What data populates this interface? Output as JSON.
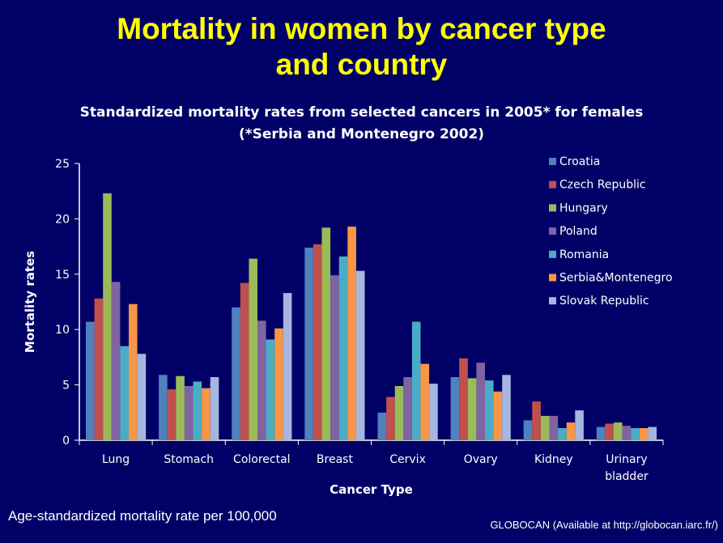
{
  "slide": {
    "title_line1": "Mortality in women by cancer type",
    "title_line2": "and country",
    "footnote": "Age-standardized mortality rate per 100,000",
    "source": "GLOBOCAN (Available at http://globocan.iarc.fr/)"
  },
  "chart_data": {
    "type": "bar",
    "title": "Standardized mortality rates from selected cancers in 2005* for females",
    "subtitle": "(*Serbia and Montenegro 2002)",
    "xlabel": "Cancer Type",
    "ylabel": "Mortality rates",
    "ylim": [
      0,
      25
    ],
    "yticks": [
      0,
      5,
      10,
      15,
      20,
      25
    ],
    "grid": false,
    "legend_position": "right",
    "categories": [
      "Lung",
      "Stomach",
      "Colorectal",
      "Breast",
      "Cervix",
      "Ovary",
      "Kidney",
      "Urinary bladder"
    ],
    "series": [
      {
        "name": "Croatia",
        "color": "#4f81bd",
        "values": [
          10.7,
          5.9,
          12.0,
          17.4,
          2.5,
          5.7,
          1.8,
          1.2
        ]
      },
      {
        "name": "Czech Republic",
        "color": "#c0504d",
        "values": [
          12.8,
          4.6,
          14.2,
          17.7,
          3.9,
          7.4,
          3.5,
          1.5
        ]
      },
      {
        "name": "Hungary",
        "color": "#9bbb59",
        "values": [
          22.3,
          5.8,
          16.4,
          19.2,
          4.9,
          5.6,
          2.2,
          1.6
        ]
      },
      {
        "name": "Poland",
        "color": "#8064a2",
        "values": [
          14.3,
          4.9,
          10.8,
          14.9,
          5.7,
          7.0,
          2.2,
          1.3
        ]
      },
      {
        "name": "Romania",
        "color": "#4bacc6",
        "values": [
          8.5,
          5.3,
          9.1,
          16.6,
          10.7,
          5.4,
          1.1,
          1.1
        ]
      },
      {
        "name": "Serbia&Montenegro",
        "color": "#f79646",
        "values": [
          12.3,
          4.7,
          10.1,
          19.3,
          6.9,
          4.4,
          1.6,
          1.1
        ]
      },
      {
        "name": "Slovak Republic",
        "color": "#a5b6e0",
        "values": [
          7.8,
          5.7,
          13.3,
          15.3,
          5.1,
          5.9,
          2.7,
          1.2
        ]
      }
    ]
  }
}
